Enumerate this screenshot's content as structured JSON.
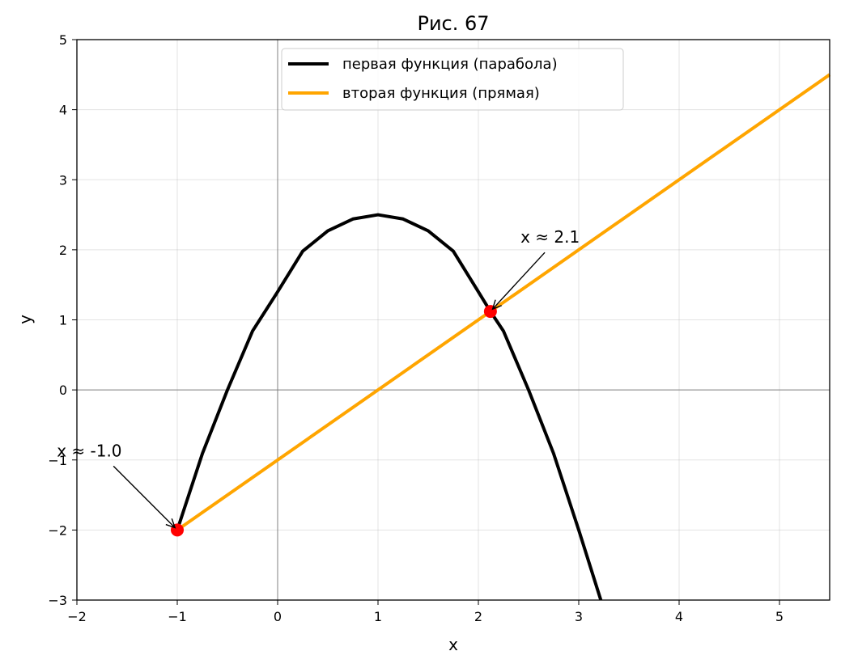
{
  "chart_data": {
    "type": "line",
    "title": "Рис. 67",
    "xlabel": "x",
    "ylabel": "y",
    "xlim": [
      -2,
      5.5
    ],
    "ylim": [
      -3,
      5
    ],
    "xticks": [
      -2,
      -1,
      0,
      1,
      2,
      3,
      4,
      5
    ],
    "yticks": [
      -3,
      -2,
      -1,
      0,
      1,
      2,
      3,
      4,
      5
    ],
    "xtick_labels": [
      "−2",
      "−1",
      "0",
      "1",
      "2",
      "3",
      "4",
      "5"
    ],
    "ytick_labels": [
      "−3",
      "−2",
      "−1",
      "0",
      "1",
      "2",
      "3",
      "4",
      "5"
    ],
    "grid": true,
    "zero_lines": true,
    "legend_position": "top-center",
    "series": [
      {
        "name": "первая функция (парабола)",
        "color": "#000000",
        "x": [
          -1.0,
          -0.75,
          -0.5,
          -0.25,
          0.0,
          0.25,
          0.5,
          0.75,
          1.0,
          1.25,
          1.5,
          1.75,
          2.0,
          2.12,
          2.25,
          2.5,
          2.75,
          3.0,
          3.22
        ],
        "y": [
          -2.0,
          -0.91,
          0.0,
          0.84,
          1.4,
          1.98,
          2.27,
          2.44,
          2.5,
          2.44,
          2.27,
          1.98,
          1.4,
          1.12,
          0.84,
          0.0,
          -0.91,
          -2.0,
          -3.0
        ]
      },
      {
        "name": "вторая функция (прямая)",
        "color": "#ffa500",
        "x": [
          -1.0,
          5.5
        ],
        "y": [
          -2.0,
          4.5
        ]
      }
    ],
    "points": [
      {
        "x": -1.0,
        "y": -2.0,
        "color": "#ff0000"
      },
      {
        "x": 2.12,
        "y": 1.12,
        "color": "#ff0000"
      }
    ],
    "annotations": [
      {
        "text": "x ≈ -1.0",
        "target_x": -1.0,
        "target_y": -2.0,
        "text_x": -2.2,
        "text_y": -0.95
      },
      {
        "text": "x ≈ 2.1",
        "target_x": 2.12,
        "target_y": 1.12,
        "text_x": 2.42,
        "text_y": 2.1
      }
    ]
  }
}
